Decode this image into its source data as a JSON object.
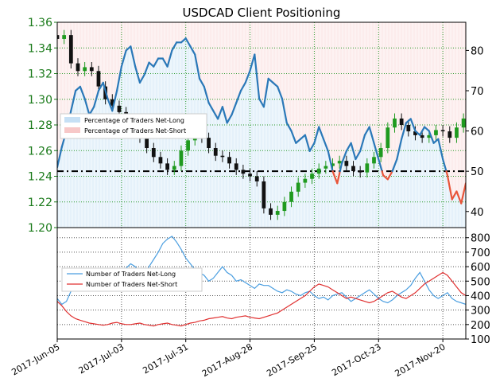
{
  "chart_data": [
    {
      "type": "line",
      "title": "USDCAD Client Positioning",
      "x_tick_labels": [
        "2017-Jun-05",
        "2017-Jul-03",
        "2017-Jul-31",
        "2017-Aug-28",
        "2017-Sep-25",
        "2017-Oct-23",
        "2017-Nov-20"
      ],
      "x_tick_days": [
        0,
        28,
        56,
        84,
        112,
        140,
        168
      ],
      "x_range_days": [
        0,
        178
      ],
      "left_axis": {
        "ticks": [
          "1.20",
          "1.22",
          "1.24",
          "1.26",
          "1.28",
          "1.30",
          "1.32",
          "1.34",
          "1.36"
        ],
        "ylim": [
          1.2,
          1.36
        ],
        "color": "#1a7a1a"
      },
      "right_axis": {
        "ticks": [
          "40",
          "50",
          "60",
          "70",
          "80"
        ],
        "ylim": [
          36,
          87
        ]
      },
      "reference_line_pct": 50,
      "legend": {
        "position": "left",
        "items": [
          {
            "label": "Percentage of Traders Net-Long",
            "color": "#c6e0f5"
          },
          {
            "label": "Percentage of Traders Net-Short",
            "color": "#f7c8c8"
          }
        ]
      },
      "price_series": {
        "days": [
          0,
          3,
          6,
          9,
          12,
          15,
          18,
          21,
          24,
          27,
          30,
          33,
          36,
          39,
          42,
          45,
          48,
          51,
          54,
          57,
          60,
          63,
          66,
          69,
          72,
          75,
          78,
          81,
          84,
          87,
          90,
          93,
          96,
          99,
          102,
          105,
          108,
          111,
          114,
          117,
          120,
          123,
          126,
          129,
          132,
          135,
          138,
          141,
          144,
          147,
          150,
          153,
          156,
          159,
          162,
          165,
          168,
          171,
          174,
          177
        ],
        "close": [
          1.347,
          1.35,
          1.328,
          1.322,
          1.325,
          1.322,
          1.31,
          1.3,
          1.295,
          1.29,
          1.28,
          1.275,
          1.27,
          1.262,
          1.255,
          1.25,
          1.245,
          1.248,
          1.26,
          1.268,
          1.273,
          1.27,
          1.262,
          1.256,
          1.255,
          1.25,
          1.245,
          1.242,
          1.24,
          1.236,
          1.215,
          1.21,
          1.213,
          1.22,
          1.228,
          1.235,
          1.238,
          1.242,
          1.246,
          1.248,
          1.25,
          1.252,
          1.248,
          1.244,
          1.243,
          1.25,
          1.255,
          1.262,
          1.278,
          1.285,
          1.28,
          1.275,
          1.272,
          1.27,
          1.272,
          1.276,
          1.275,
          1.27,
          1.278,
          1.285
        ]
      },
      "pct_long_series": {
        "days": [
          0,
          2,
          4,
          6,
          8,
          10,
          12,
          14,
          16,
          18,
          20,
          22,
          24,
          26,
          28,
          30,
          32,
          34,
          36,
          38,
          40,
          42,
          44,
          46,
          48,
          50,
          52,
          54,
          56,
          58,
          60,
          62,
          64,
          66,
          68,
          70,
          72,
          74,
          76,
          78,
          80,
          82,
          84,
          86,
          88,
          90,
          92,
          94,
          96,
          98,
          100,
          102,
          104,
          106,
          108,
          110,
          112,
          114,
          116,
          118,
          120,
          122,
          124,
          126,
          128,
          130,
          132,
          134,
          136,
          138,
          140,
          142,
          144,
          146,
          148,
          150,
          152,
          154,
          156,
          158,
          160,
          162,
          164,
          166,
          168,
          170,
          172,
          174,
          176,
          178
        ],
        "values": [
          51,
          56,
          60,
          65,
          70,
          71,
          68,
          64,
          66,
          70,
          72,
          68,
          65,
          70,
          76,
          80,
          81,
          76,
          72,
          74,
          77,
          76,
          78,
          78,
          76,
          80,
          82,
          82,
          83,
          81,
          79,
          73,
          71,
          67,
          65,
          63,
          66,
          62,
          64,
          67,
          70,
          72,
          75,
          79,
          68,
          66,
          73,
          72,
          71,
          68,
          62,
          60,
          57,
          58,
          59,
          55,
          57,
          61,
          58,
          55,
          50,
          47,
          52,
          55,
          57,
          53,
          55,
          59,
          61,
          57,
          53,
          49,
          48,
          50,
          53,
          58,
          62,
          63,
          60,
          59,
          61,
          60,
          57,
          58,
          53,
          49,
          43,
          45,
          42,
          47
        ]
      }
    },
    {
      "type": "line",
      "y_ticks": [
        "100",
        "200",
        "300",
        "400",
        "500",
        "600",
        "700",
        "800"
      ],
      "ylim": [
        100,
        870
      ],
      "legend": {
        "position": "left",
        "items": [
          {
            "label": "Number of Traders Net-Long",
            "color": "#4a9ee0"
          },
          {
            "label": "Number of Traders Net-Short",
            "color": "#e03030"
          }
        ]
      },
      "series": [
        {
          "name": "Number of Traders Net-Long",
          "values": [
            380,
            340,
            360,
            430,
            470,
            520,
            560,
            570,
            560,
            540,
            550,
            520,
            500,
            520,
            560,
            590,
            620,
            600,
            560,
            540,
            600,
            650,
            700,
            760,
            790,
            810,
            770,
            720,
            660,
            620,
            580,
            560,
            540,
            500,
            520,
            560,
            600,
            560,
            540,
            500,
            510,
            490,
            470,
            450,
            480,
            470,
            470,
            450,
            430,
            420,
            440,
            430,
            410,
            400,
            420,
            430,
            400,
            380,
            390,
            370,
            400,
            410,
            420,
            390,
            360,
            380,
            400,
            420,
            440,
            410,
            380,
            360,
            350,
            370,
            400,
            420,
            440,
            470,
            520,
            560,
            500,
            440,
            400,
            380,
            400,
            420,
            380,
            360,
            350,
            340
          ]
        },
        {
          "name": "Number of Traders Net-Short",
          "values": [
            360,
            330,
            290,
            260,
            240,
            230,
            220,
            210,
            205,
            200,
            195,
            200,
            210,
            215,
            205,
            200,
            200,
            205,
            210,
            200,
            195,
            190,
            200,
            205,
            210,
            200,
            195,
            190,
            200,
            210,
            215,
            225,
            230,
            240,
            245,
            250,
            255,
            245,
            240,
            250,
            255,
            260,
            250,
            245,
            240,
            250,
            260,
            270,
            280,
            300,
            320,
            340,
            360,
            380,
            400,
            430,
            460,
            480,
            470,
            460,
            440,
            420,
            400,
            380,
            390,
            380,
            370,
            360,
            350,
            360,
            380,
            400,
            420,
            430,
            410,
            390,
            380,
            400,
            420,
            450,
            480,
            500,
            520,
            540,
            560,
            540,
            500,
            460,
            420,
            400
          ]
        }
      ]
    }
  ]
}
